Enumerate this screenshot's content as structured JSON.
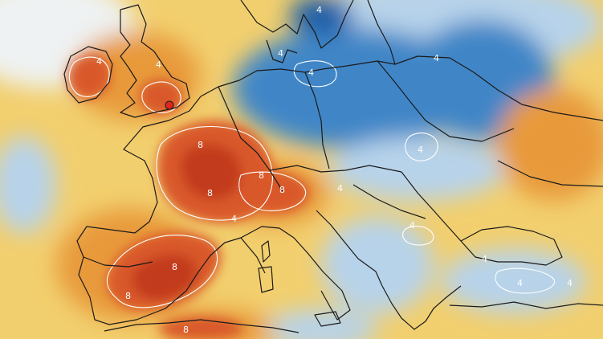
{
  "map": {
    "palette": {
      "sea_cold": "#c9dcec",
      "cold_blue": "#3f86c7",
      "deep_blue": "#1f5ea8",
      "light_blue": "#b7d3ea",
      "pale": "#eef2f2",
      "yellow": "#f2cf6e",
      "orange": "#e89a3b",
      "red_orange": "#d9592a",
      "deep_red": "#c23a1e",
      "coast": "#1a1a1a",
      "contour": "#ffffff",
      "marker": "#e0261c"
    },
    "contour_labels": [
      {
        "text": "4",
        "region": "scandinavia"
      },
      {
        "text": "4",
        "region": "denmark"
      },
      {
        "text": "4",
        "region": "ireland"
      },
      {
        "text": "4",
        "region": "england"
      },
      {
        "text": "4",
        "region": "baltic"
      },
      {
        "text": "4",
        "region": "poland"
      },
      {
        "text": "4",
        "region": "russia-west"
      },
      {
        "text": "8",
        "region": "central-france"
      },
      {
        "text": "8",
        "region": "central-france-2"
      },
      {
        "text": "8",
        "region": "alps"
      },
      {
        "text": "8",
        "region": "alps-2"
      },
      {
        "text": "4",
        "region": "provence"
      },
      {
        "text": "4",
        "region": "balkans"
      },
      {
        "text": "4",
        "region": "romania"
      },
      {
        "text": "4",
        "region": "black-sea"
      },
      {
        "text": "8",
        "region": "spain"
      },
      {
        "text": "8",
        "region": "spain-south"
      },
      {
        "text": "8",
        "region": "north-africa"
      },
      {
        "text": "4",
        "region": "turkey"
      },
      {
        "text": "4",
        "region": "turkey-2"
      }
    ],
    "marker": {
      "name": "london-marker"
    }
  }
}
